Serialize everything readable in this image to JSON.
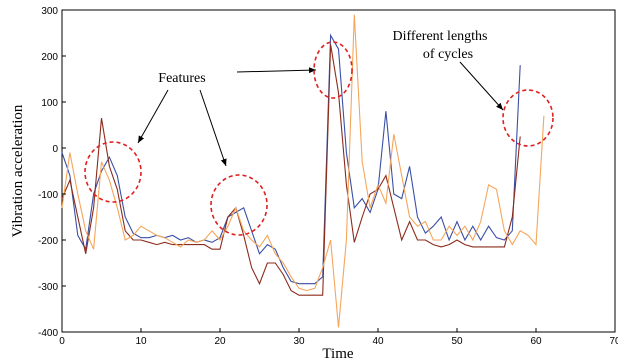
{
  "chart_data": {
    "type": "line",
    "x": [
      0,
      1,
      2,
      3,
      4,
      5,
      6,
      7,
      8,
      9,
      10,
      11,
      12,
      13,
      14,
      15,
      16,
      17,
      18,
      19,
      20,
      21,
      22,
      23,
      24,
      25,
      26,
      27,
      28,
      29,
      30,
      31,
      32,
      33,
      34,
      35,
      36,
      37,
      38,
      39,
      40,
      41,
      42,
      43,
      44,
      45,
      46,
      47,
      48,
      49,
      50,
      51,
      52,
      53,
      54,
      55,
      56,
      57,
      58,
      59,
      60,
      61
    ],
    "series": [
      {
        "color": "#3a4fa6",
        "values": [
          -10,
          -60,
          -190,
          -220,
          -100,
          -50,
          -20,
          -60,
          -150,
          -185,
          -195,
          -195,
          -190,
          -195,
          -190,
          -200,
          -195,
          -205,
          -200,
          -205,
          -195,
          -150,
          -140,
          -130,
          -180,
          -230,
          -210,
          -220,
          -260,
          -290,
          -295,
          -295,
          -295,
          -280,
          245,
          215,
          -10,
          -130,
          -110,
          -140,
          -90,
          80,
          -100,
          -110,
          -40,
          -150,
          -185,
          -170,
          -150,
          -200,
          -160,
          -200,
          -170,
          -200,
          -170,
          -195,
          -200,
          -180,
          180,
          null,
          null,
          null
        ]
      },
      {
        "color": "#8b2b1c",
        "values": [
          -110,
          -70,
          -150,
          -230,
          -130,
          65,
          -40,
          -90,
          -180,
          -200,
          -200,
          -205,
          -210,
          -205,
          -210,
          -210,
          -210,
          -210,
          -210,
          -220,
          -220,
          -150,
          -130,
          -190,
          -260,
          -295,
          -250,
          -250,
          -275,
          -310,
          -320,
          -320,
          -320,
          -320,
          225,
          120,
          -80,
          -205,
          -150,
          -100,
          -90,
          -60,
          -130,
          -200,
          -160,
          -200,
          -200,
          -210,
          -215,
          -210,
          -200,
          -210,
          -215,
          -215,
          -215,
          -215,
          -215,
          -150,
          25,
          null,
          null,
          null
        ]
      },
      {
        "color": "#f5a65b",
        "values": [
          -130,
          -10,
          -100,
          -180,
          -220,
          -30,
          -70,
          -130,
          -200,
          -190,
          -170,
          -180,
          -190,
          -195,
          -205,
          -215,
          -200,
          -205,
          -200,
          -180,
          -200,
          -170,
          -130,
          -180,
          -200,
          -215,
          -190,
          -230,
          -250,
          -280,
          -305,
          -310,
          -305,
          -260,
          -200,
          -390,
          -200,
          290,
          -30,
          -130,
          -80,
          -120,
          30,
          -60,
          -150,
          -170,
          -160,
          -200,
          -200,
          -170,
          -190,
          -170,
          -200,
          -160,
          -80,
          -90,
          -180,
          -210,
          -180,
          -190,
          -210,
          70
        ]
      }
    ],
    "xlabel": "Time",
    "ylabel": "Vibration acceleration",
    "xlim": [
      0,
      70
    ],
    "xticks": [
      0,
      10,
      20,
      30,
      40,
      50,
      60,
      70
    ],
    "ylim": [
      -400,
      300
    ],
    "yticks": [
      -400,
      -300,
      -200,
      -100,
      0,
      100,
      200,
      300
    ],
    "annotations": [
      "Features",
      "Different lengths",
      "of cycles"
    ]
  }
}
